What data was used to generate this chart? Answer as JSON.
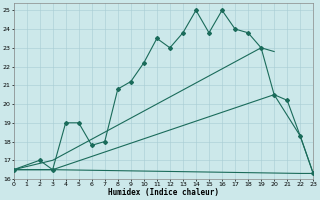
{
  "xlabel": "Humidex (Indice chaleur)",
  "xlim": [
    0,
    23
  ],
  "ylim": [
    16,
    25.4
  ],
  "xticks": [
    0,
    1,
    2,
    3,
    4,
    5,
    6,
    7,
    8,
    9,
    10,
    11,
    12,
    13,
    14,
    15,
    16,
    17,
    18,
    19,
    20,
    21,
    22,
    23
  ],
  "yticks": [
    16,
    17,
    18,
    19,
    20,
    21,
    22,
    23,
    24,
    25
  ],
  "bg_color": "#cce8ea",
  "grid_color": "#a8cdd4",
  "line_color": "#1a6b5a",
  "series1_x": [
    0,
    2,
    3,
    4,
    5,
    6,
    7,
    8,
    9,
    10,
    11,
    12,
    13,
    14,
    15,
    16,
    17,
    18,
    19,
    20,
    21,
    22,
    23
  ],
  "series1_y": [
    16.5,
    17.0,
    16.5,
    19.0,
    19.0,
    17.8,
    18.0,
    20.8,
    21.2,
    22.2,
    23.5,
    23.0,
    23.8,
    25.0,
    23.8,
    25.0,
    24.0,
    23.8,
    23.0,
    20.5,
    20.2,
    18.3,
    16.3
  ],
  "series2_x": [
    0,
    3,
    22,
    23
  ],
  "series2_y": [
    16.5,
    16.5,
    16.3,
    16.3
  ],
  "series3_x": [
    0,
    3,
    20,
    22,
    23
  ],
  "series3_y": [
    16.5,
    16.5,
    20.5,
    18.3,
    16.3
  ],
  "series4_x": [
    0,
    3,
    19,
    20
  ],
  "series4_y": [
    16.5,
    17.0,
    23.0,
    22.8
  ]
}
